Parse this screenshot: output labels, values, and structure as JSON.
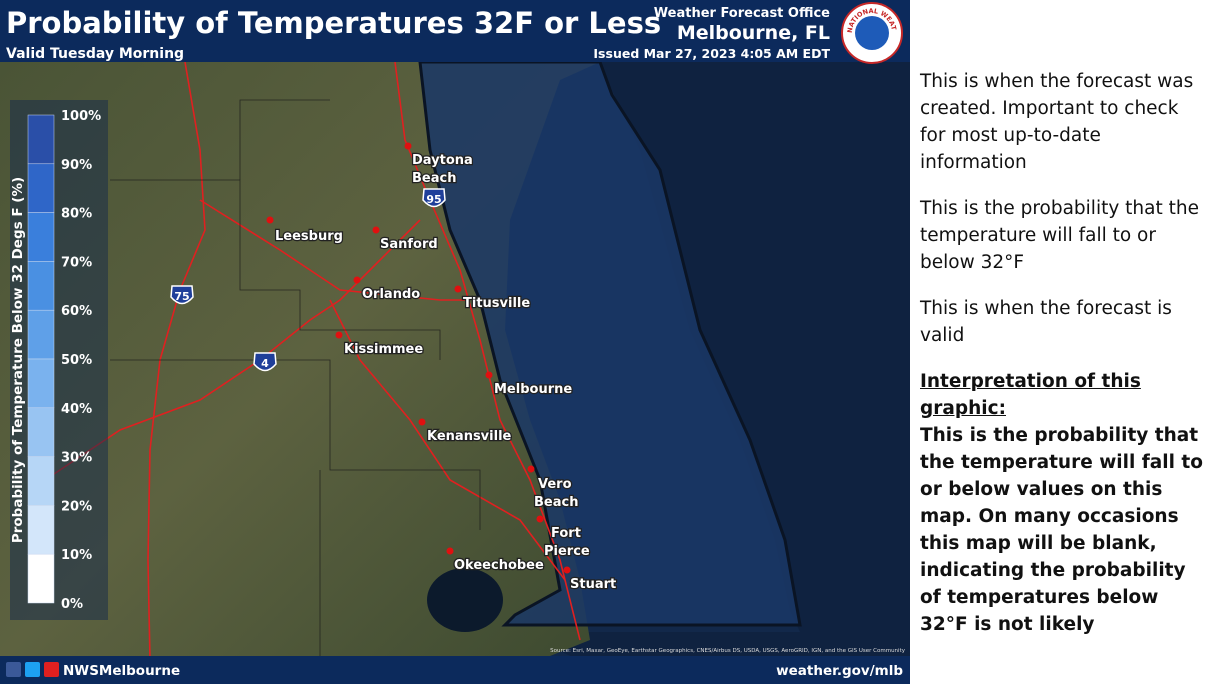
{
  "header": {
    "title": "Probability of Temperatures 32F or Less",
    "subtitle": "Valid Tuesday Morning",
    "office_line1": "Weather Forecast Office",
    "office_line2": "Melbourne, FL",
    "issued": "Issued Mar 27, 2023 4:05 AM EDT",
    "logo_text": "NATIONAL WEATHER SERVICE"
  },
  "legend": {
    "axis_label": "Probability of Temperature Below 32 Degs F (%)",
    "labels": [
      "100%",
      "90%",
      "80%",
      "70%",
      "60%",
      "50%",
      "40%",
      "30%",
      "20%",
      "10%",
      "0%"
    ]
  },
  "map": {
    "cities": [
      {
        "lines": [
          "Daytona",
          "Beach"
        ]
      },
      {
        "lines": [
          "Leesburg"
        ]
      },
      {
        "lines": [
          "Sanford"
        ]
      },
      {
        "lines": [
          "Orlando"
        ]
      },
      {
        "lines": [
          "Titusville"
        ]
      },
      {
        "lines": [
          "Kissimmee"
        ]
      },
      {
        "lines": [
          "Melbourne"
        ]
      },
      {
        "lines": [
          "Kenansville"
        ]
      },
      {
        "lines": [
          "Vero",
          "Beach"
        ]
      },
      {
        "lines": [
          "Fort",
          "Pierce"
        ]
      },
      {
        "lines": [
          "Okeechobee"
        ]
      },
      {
        "lines": [
          "Stuart"
        ]
      }
    ],
    "shields": [
      "75",
      "95",
      "4"
    ],
    "source": "Source: Esri, Maxar, GeoEye, Earthstar Geographics, CNES/Airbus DS, USDA, USGS, AeroGRID, IGN, and the GIS User Community"
  },
  "footer": {
    "handle": "NWSMelbourne",
    "url": "weather.gov/mlb"
  },
  "notes": {
    "issued_note": "This is when the forecast was created. Important to check for most up-to-date information",
    "probability_note": "This is the probability that the temperature will fall to or below 32°F",
    "valid_note": "This is when the forecast is valid",
    "interpretation_heading": "Interpretation of this graphic:",
    "interpretation_text": "This is the probability that the temperature will fall to or below values on this map. On many occasions this map will be blank, indicating the probability of temperatures below 32°F is not likely"
  }
}
